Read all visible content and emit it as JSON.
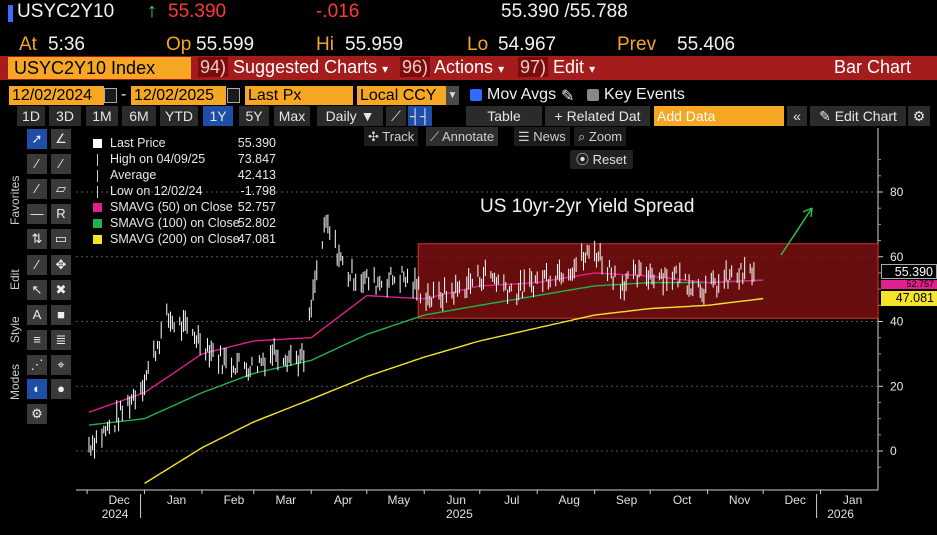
{
  "quote": {
    "ticker": "USYC2Y10",
    "last": "55.390",
    "change": "-.016",
    "bid_ask": "55.390 /55.788",
    "at_label": "At",
    "at": "5:36",
    "op_label": "Op",
    "op": "55.599",
    "hi_label": "Hi",
    "hi": "55.959",
    "lo_label": "Lo",
    "lo": "54.967",
    "prev_label": "Prev",
    "prev": "55.406"
  },
  "menubar": {
    "security": "USYC2Y10 Index",
    "m1_num": "94)",
    "m1": "Suggested Charts",
    "m2_num": "96)",
    "m2": "Actions",
    "m3_num": "97)",
    "m3": "Edit",
    "chart_type": "Bar Chart"
  },
  "dates": {
    "start": "12/02/2024",
    "end": "12/02/2025",
    "field": "Last Px",
    "ccy": "Local CCY",
    "mov_avgs": "Mov Avgs",
    "key_events": "Key Events"
  },
  "toolbar": {
    "periods": [
      "1D",
      "3D",
      "1M",
      "6M",
      "YTD",
      "1Y",
      "5Y",
      "Max"
    ],
    "selected_period": "1Y",
    "freq": "Daily",
    "table": "Table",
    "related": "+ Related Dat",
    "add_data_placeholder": "Add Data",
    "edit_chart": "Edit Chart"
  },
  "palette": {
    "favorites": "Favorites",
    "edit": "Edit",
    "style": "Style",
    "modes": "Modes"
  },
  "chart_tools": {
    "track": "Track",
    "annotate": "Annotate",
    "news": "News",
    "zoom": "Zoom",
    "reset": "Reset"
  },
  "legend": [
    {
      "name": "Last Price",
      "value": "55.390",
      "color": "#ffffff",
      "icon": "square"
    },
    {
      "name": "High on 04/09/25",
      "value": "73.847",
      "color": "#cccccc",
      "icon": "high-marker"
    },
    {
      "name": "Average",
      "value": "42.413",
      "color": "#cccccc",
      "icon": "avg-marker"
    },
    {
      "name": "Low on 12/02/24",
      "value": "-1.798",
      "color": "#cccccc",
      "icon": "low-marker"
    },
    {
      "name": "SMAVG (50)  on Close",
      "value": "52.757",
      "color": "#e0208c",
      "icon": "square"
    },
    {
      "name": "SMAVG (100)  on Close",
      "value": "52.802",
      "color": "#22b14c",
      "icon": "square"
    },
    {
      "name": "SMAVG (200)  on Close",
      "value": "47.081",
      "color": "#f5e52a",
      "icon": "square"
    }
  ],
  "annotation": "US 10yr-2yr Yield Spread",
  "badges": {
    "last": "55.390",
    "sma50": "52.757",
    "sma200": "47.081"
  },
  "chart_data": {
    "type": "bar",
    "title": "US 10yr-2yr Yield Spread",
    "xlabel": "",
    "ylabel": "",
    "ylim": [
      -10,
      95
    ],
    "yticks": [
      0,
      20,
      40,
      60,
      80
    ],
    "x_tick_labels": [
      "Dec",
      "Jan",
      "Feb",
      "Mar",
      "Apr",
      "May",
      "Jun",
      "Jul",
      "Aug",
      "Sep",
      "Oct",
      "Nov",
      "Dec",
      "Jan"
    ],
    "year_labels": [
      "2024",
      "2025",
      "2026"
    ],
    "x_months": [
      "2024-12",
      "2025-01",
      "2025-02",
      "2025-03",
      "2025-04",
      "2025-05",
      "2025-06",
      "2025-07",
      "2025-08",
      "2025-09",
      "2025-10",
      "2025-11",
      "2025-12",
      "2026-01"
    ],
    "price_path": {
      "months": [
        "2024-12-02",
        "2024-12-15",
        "2025-01-01",
        "2025-01-13",
        "2025-01-28",
        "2025-02-12",
        "2025-02-28",
        "2025-03-12",
        "2025-03-28",
        "2025-04-03",
        "2025-04-09",
        "2025-04-20",
        "2025-05-05",
        "2025-05-20",
        "2025-06-05",
        "2025-06-20",
        "2025-07-05",
        "2025-07-20",
        "2025-08-05",
        "2025-08-20",
        "2025-09-01",
        "2025-09-15",
        "2025-10-01",
        "2025-10-15",
        "2025-11-01",
        "2025-11-15",
        "2025-12-01"
      ],
      "values": [
        2,
        8,
        22,
        41,
        36,
        28,
        26,
        31,
        28,
        52,
        70,
        55,
        52,
        54,
        47,
        50,
        55,
        49,
        54,
        57,
        62,
        52,
        55,
        54,
        50,
        54,
        55.39
      ]
    },
    "sma50": {
      "months": [
        "2024-12-02",
        "2025-01-01",
        "2025-02-01",
        "2025-03-01",
        "2025-04-01",
        "2025-05-01",
        "2025-06-01",
        "2025-07-01",
        "2025-08-01",
        "2025-09-01",
        "2025-10-01",
        "2025-11-01",
        "2025-12-01"
      ],
      "values": [
        12,
        18,
        30,
        34,
        35,
        48,
        47,
        51,
        52,
        55,
        54,
        52,
        52.757
      ]
    },
    "sma100": {
      "months": [
        "2024-12-02",
        "2025-01-01",
        "2025-02-01",
        "2025-03-01",
        "2025-04-01",
        "2025-05-01",
        "2025-06-01",
        "2025-07-01",
        "2025-08-01",
        "2025-09-01",
        "2025-10-01",
        "2025-11-01",
        "2025-12-01"
      ],
      "values": [
        8,
        10,
        18,
        24,
        28,
        36,
        42,
        45,
        48,
        51,
        52,
        52,
        52.802
      ]
    },
    "sma200": {
      "months": [
        "2025-01-01",
        "2025-02-01",
        "2025-03-01",
        "2025-04-01",
        "2025-05-01",
        "2025-06-01",
        "2025-07-01",
        "2025-08-01",
        "2025-09-01",
        "2025-10-01",
        "2025-11-01",
        "2025-12-01"
      ],
      "values": [
        -10,
        1,
        9,
        16,
        23,
        29,
        34,
        38,
        42,
        44,
        45,
        47.081
      ]
    },
    "highlight_band": {
      "start": "2025-06-01",
      "end": "2025-12-31",
      "y_low": 41,
      "y_high": 64
    },
    "colors": {
      "price": "#ffffff",
      "sma50": "#e0208c",
      "sma100": "#22b14c",
      "sma200": "#f5e52a",
      "band": "#7a0f0f",
      "band_border": "#e03030",
      "arrow": "#2ec04f"
    },
    "last": 55.39,
    "high": {
      "date": "04/09/25",
      "value": 73.847
    },
    "average": 42.413,
    "low": {
      "date": "12/02/24",
      "value": -1.798
    }
  }
}
